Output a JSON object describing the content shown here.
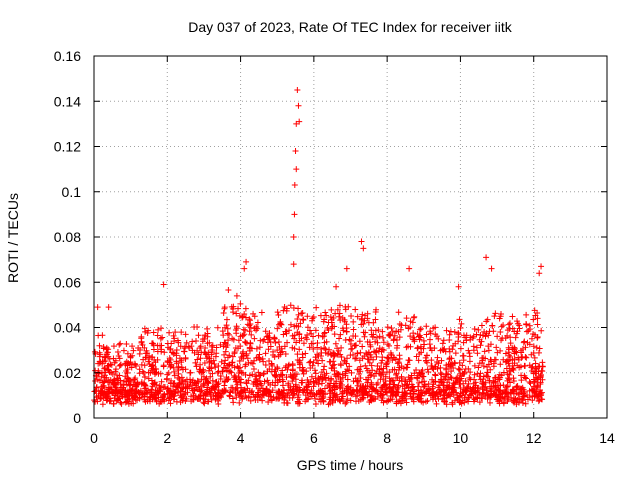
{
  "chart_data": {
    "type": "scatter",
    "title": "Day 037 of 2023, Rate Of TEC Index for receiver iitk",
    "xlabel": "GPS time / hours",
    "ylabel": "ROTI / TECUs",
    "xlim": [
      0,
      14
    ],
    "ylim": [
      0,
      0.16
    ],
    "x_ticks": [
      "0",
      "2",
      "4",
      "6",
      "8",
      "10",
      "12",
      "14"
    ],
    "y_ticks": [
      "0",
      "0.02",
      "0.04",
      "0.06",
      "0.08",
      "0.1",
      "0.12",
      "0.14",
      "0.16"
    ],
    "grid": true,
    "marker": "+",
    "series_color": "#ff0000",
    "x_data_range": [
      0,
      12.25
    ],
    "highlighted_points": [
      {
        "x": 5.55,
        "y": 0.145
      },
      {
        "x": 5.58,
        "y": 0.138
      },
      {
        "x": 5.52,
        "y": 0.13
      },
      {
        "x": 5.6,
        "y": 0.131
      },
      {
        "x": 5.5,
        "y": 0.118
      },
      {
        "x": 5.52,
        "y": 0.11
      },
      {
        "x": 5.48,
        "y": 0.103
      },
      {
        "x": 5.47,
        "y": 0.09
      },
      {
        "x": 5.45,
        "y": 0.08
      },
      {
        "x": 5.45,
        "y": 0.068
      },
      {
        "x": 7.3,
        "y": 0.078
      },
      {
        "x": 7.35,
        "y": 0.075
      },
      {
        "x": 4.15,
        "y": 0.069
      },
      {
        "x": 4.1,
        "y": 0.066
      },
      {
        "x": 10.7,
        "y": 0.071
      },
      {
        "x": 10.85,
        "y": 0.066
      },
      {
        "x": 12.2,
        "y": 0.067
      },
      {
        "x": 12.15,
        "y": 0.064
      },
      {
        "x": 8.6,
        "y": 0.066
      },
      {
        "x": 1.9,
        "y": 0.059
      },
      {
        "x": 9.95,
        "y": 0.058
      },
      {
        "x": 0.1,
        "y": 0.049
      },
      {
        "x": 0.4,
        "y": 0.049
      },
      {
        "x": 3.9,
        "y": 0.054
      },
      {
        "x": 6.9,
        "y": 0.066
      }
    ]
  }
}
